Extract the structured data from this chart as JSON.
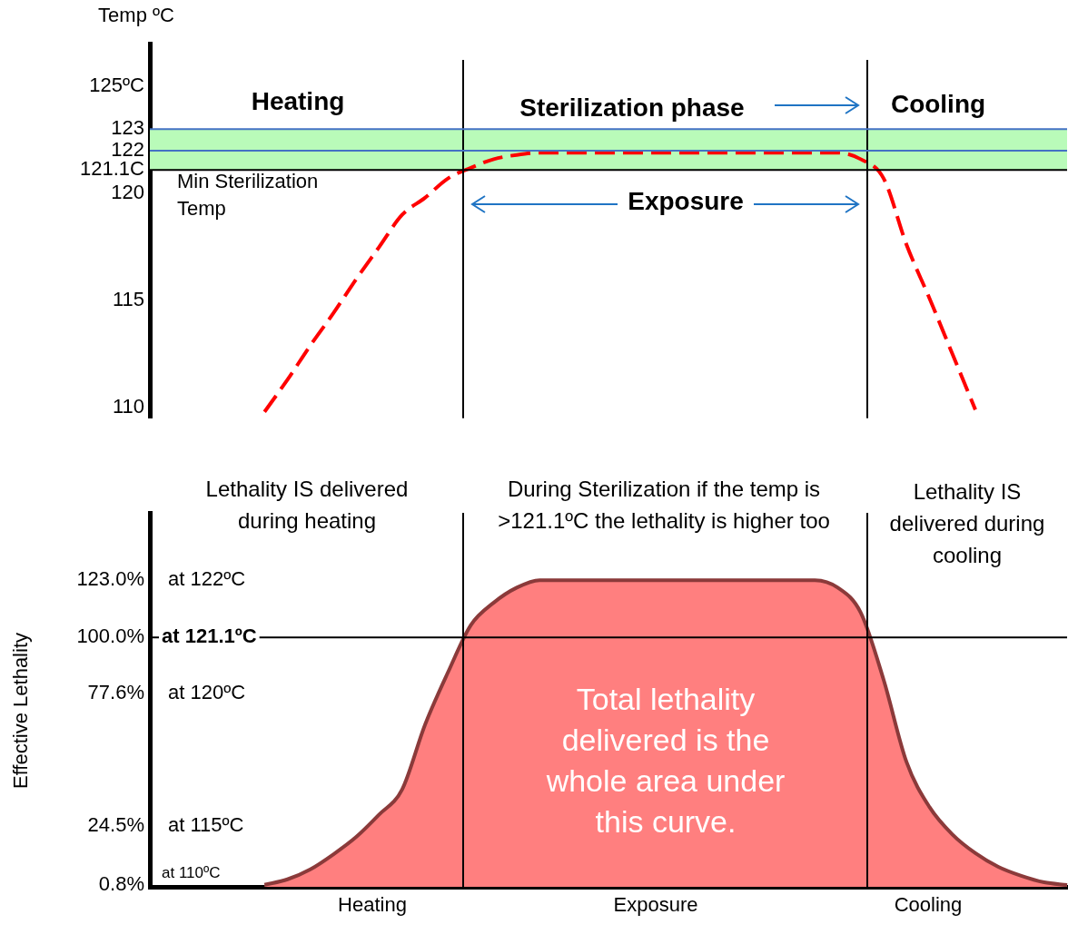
{
  "chart_data": [
    {
      "type": "line",
      "ylabel": "Temp ºC",
      "categories": [
        null,
        null,
        null,
        null,
        null,
        null,
        null,
        null,
        null,
        null,
        null,
        null,
        null,
        null,
        null,
        null,
        null,
        null,
        null,
        null,
        null,
        null,
        null,
        null,
        null,
        null,
        null,
        null,
        null,
        null,
        null,
        null,
        null,
        null,
        null,
        null,
        null,
        null,
        null,
        null,
        null
      ],
      "series": [
        {
          "color": "#ff0000",
          "values": [
            null,
            null,
            null,
            null,
            null,
            109.8,
            111.3,
            112.9,
            114.4,
            116,
            117.5,
            119,
            119.8,
            120.7,
            121.2,
            121.6,
            121.8,
            121.9,
            121.9,
            121.9,
            121.9,
            121.9,
            121.9,
            121.9,
            121.9,
            121.9,
            121.9,
            121.9,
            121.9,
            121.9,
            121.9,
            121.6,
            120.7,
            117.6,
            115.1,
            112.5,
            109.9,
            null,
            null,
            null,
            null
          ]
        }
      ],
      "line_style": "dashed",
      "ylim": [
        109.5,
        127
      ],
      "yticks": [
        110,
        115,
        120,
        {
          "value": 121.1,
          "label": "121.1C"
        },
        122,
        123,
        {
          "value": 125,
          "label": "125ºC"
        }
      ],
      "tick_labels": "y",
      "legend": false,
      "grid": false,
      "bands": [
        {
          "axis": "y",
          "from": 121.1,
          "to": 123,
          "color": "#b9fbb9"
        }
      ],
      "ref_lines": [
        {
          "axis": "y",
          "value": 121.1,
          "label": "Min Sterilization Temp",
          "color": "#000000"
        },
        {
          "axis": "y",
          "value": 122,
          "color": "#4472c4"
        },
        {
          "axis": "y",
          "value": 123,
          "color": "#4472c4"
        }
      ],
      "annotations": [
        "Heating",
        "Sterilization phase",
        "Cooling",
        "Exposure"
      ]
    },
    {
      "type": "area",
      "ylabel": "Effective Lethality",
      "categories": [
        null,
        null,
        null,
        null,
        null,
        null,
        null,
        null,
        null,
        null,
        null,
        null,
        null,
        null,
        null,
        null,
        null,
        null,
        null,
        null,
        null,
        null,
        null,
        null,
        null,
        null,
        null,
        null,
        null,
        null,
        null,
        null,
        null,
        null,
        null,
        null,
        null,
        null,
        null,
        null,
        null
      ],
      "series": [
        {
          "color": "#ff7f7f",
          "values": [
            null,
            null,
            null,
            null,
            null,
            0.8,
            3,
            7,
            13,
            20,
            29,
            39,
            65,
            86,
            105,
            114,
            120,
            123,
            123,
            123,
            123,
            123,
            123,
            123,
            123,
            123,
            123,
            123,
            123,
            123,
            120,
            110,
            83,
            50,
            32,
            21,
            13.5,
            8,
            4.4,
            1.8,
            0.7
          ]
        }
      ],
      "ylim": [
        0,
        150
      ],
      "yticks": [
        {
          "value": 0.8,
          "label": "0.8%"
        },
        {
          "value": 24.5,
          "label": "24.5%"
        },
        {
          "value": 77.6,
          "label": "77.6%"
        },
        {
          "value": 100,
          "label": "100.0%"
        },
        {
          "value": 123,
          "label": "123.0%"
        }
      ],
      "tick_labels": "y",
      "legend": false,
      "grid": false,
      "ref_lines": [
        {
          "axis": "y",
          "value": 100,
          "color": "#000000"
        }
      ],
      "annotations": [
        "Lethality IS delivered during heating",
        "During Sterilization if the temp is >121.1ºC the lethality is higher too",
        "Lethality IS delivered during cooling",
        "Total lethality delivered is the whole area under this curve.",
        "Heating",
        "Exposure",
        "Cooling",
        "at 122ºC",
        "at 121.1ºC",
        "at 120ºC",
        "at 115ºC",
        "at 110ºC"
      ]
    }
  ]
}
